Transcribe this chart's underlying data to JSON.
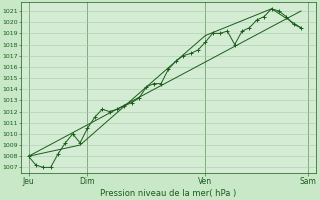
{
  "title": "Pression niveau de la mer( hPa )",
  "bg_color": "#c8e8c8",
  "plot_bg_color": "#d4ecd4",
  "grid_color": "#a8cca8",
  "line_color": "#1a5c1a",
  "ylim": [
    1006.5,
    1021.8
  ],
  "ytick_min": 1007,
  "ytick_max": 1021,
  "xlim": [
    -3,
    117
  ],
  "xtick_labels": [
    "Jeu",
    "Dim",
    "Ven",
    "Sam"
  ],
  "xtick_positions": [
    0,
    24,
    72,
    114
  ],
  "series1": [
    [
      0,
      1008.0
    ],
    [
      3,
      1007.2
    ],
    [
      6,
      1007.0
    ],
    [
      9,
      1007.0
    ],
    [
      12,
      1008.2
    ],
    [
      15,
      1009.2
    ],
    [
      18,
      1010.0
    ],
    [
      21,
      1009.2
    ],
    [
      24,
      1010.5
    ],
    [
      27,
      1011.5
    ],
    [
      30,
      1012.2
    ],
    [
      33,
      1012.0
    ],
    [
      36,
      1012.2
    ],
    [
      39,
      1012.5
    ],
    [
      42,
      1012.8
    ],
    [
      45,
      1013.2
    ],
    [
      48,
      1014.2
    ],
    [
      51,
      1014.5
    ],
    [
      54,
      1014.5
    ],
    [
      57,
      1015.8
    ],
    [
      60,
      1016.5
    ],
    [
      63,
      1017.0
    ],
    [
      66,
      1017.2
    ],
    [
      69,
      1017.5
    ],
    [
      72,
      1018.2
    ],
    [
      75,
      1019.0
    ],
    [
      78,
      1019.0
    ],
    [
      81,
      1019.2
    ],
    [
      84,
      1018.0
    ],
    [
      87,
      1019.2
    ],
    [
      90,
      1019.5
    ],
    [
      93,
      1020.2
    ],
    [
      96,
      1020.5
    ],
    [
      99,
      1021.2
    ],
    [
      102,
      1021.0
    ],
    [
      105,
      1020.5
    ],
    [
      108,
      1019.8
    ],
    [
      111,
      1019.5
    ]
  ],
  "series2": [
    [
      0,
      1008.0
    ],
    [
      21,
      1009.0
    ],
    [
      48,
      1014.2
    ],
    [
      72,
      1018.8
    ],
    [
      99,
      1021.2
    ],
    [
      111,
      1019.5
    ]
  ],
  "trend_line": [
    [
      0,
      1008.0
    ],
    [
      111,
      1021.0
    ]
  ]
}
